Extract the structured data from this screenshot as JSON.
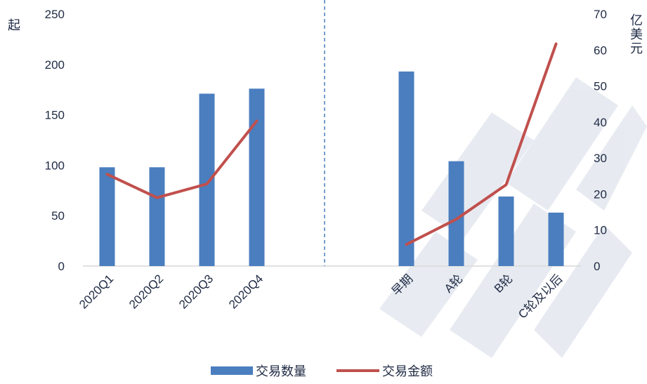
{
  "chart_data": {
    "type": "bar",
    "categories": [
      "2020Q1",
      "2020Q2",
      "2020Q3",
      "2020Q4",
      "",
      "",
      "早期",
      "A轮",
      "B轮",
      "C轮及以后"
    ],
    "series": [
      {
        "name": "交易数量",
        "kind": "bar",
        "axis": "left",
        "values": [
          98,
          98,
          171,
          176,
          null,
          null,
          193,
          104,
          69,
          53
        ]
      },
      {
        "name": "交易金额",
        "kind": "line",
        "axis": "right",
        "values": [
          25.5,
          19,
          22.8,
          40.3,
          null,
          null,
          6,
          13,
          22.6,
          61.7
        ]
      }
    ],
    "y_left": {
      "label": "起",
      "ylim": [
        0,
        250
      ],
      "ticks": [
        0,
        50,
        100,
        150,
        200,
        250
      ]
    },
    "y_right": {
      "label": "亿美元",
      "ylim": [
        0,
        70
      ],
      "ticks": [
        0,
        10,
        20,
        30,
        40,
        50,
        60,
        70
      ]
    },
    "divider": "dashed vertical line between the quarterly group and the funding-round group",
    "legend_position": "bottom-center",
    "grid": false,
    "colors": {
      "bar": "#4a7ebf",
      "line": "#c0504d",
      "divider": "#4a7ebf",
      "text": "#1f2a44"
    }
  }
}
